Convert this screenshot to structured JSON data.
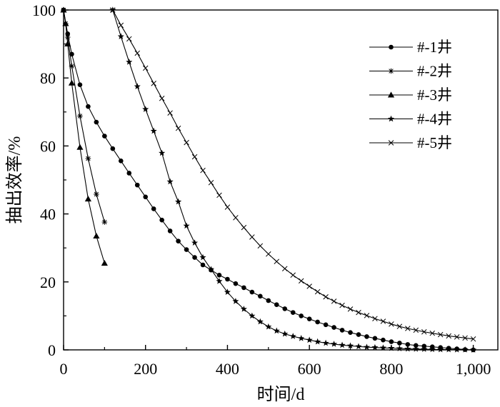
{
  "chart_data": {
    "type": "line",
    "xlabel": "时间/d",
    "ylabel": "抽出效率/%",
    "xlim": [
      0,
      1060
    ],
    "ylim": [
      0,
      100
    ],
    "xticks": [
      0,
      200,
      400,
      600,
      800,
      1000
    ],
    "xtick_labels": [
      "0",
      "200",
      "400",
      "600",
      "800",
      "1,000"
    ],
    "yticks": [
      0,
      20,
      40,
      60,
      80,
      100
    ],
    "ytick_labels": [
      "0",
      "20",
      "40",
      "60",
      "80",
      "100"
    ],
    "grid": false,
    "legend_position": "top-right",
    "series": [
      {
        "name": "#-1井",
        "marker": "dot",
        "x": [
          0,
          10,
          20,
          40,
          60,
          80,
          100,
          120,
          140,
          160,
          180,
          200,
          220,
          240,
          260,
          280,
          300,
          320,
          340,
          360,
          380,
          400,
          420,
          440,
          460,
          480,
          500,
          520,
          540,
          560,
          580,
          600,
          620,
          640,
          660,
          680,
          700,
          720,
          740,
          760,
          780,
          800,
          820,
          840,
          860,
          880,
          900,
          920,
          940,
          960,
          980,
          1000
        ],
        "y": [
          100,
          93,
          87,
          78,
          71.6,
          67,
          62.9,
          59.2,
          55.6,
          52,
          48.5,
          45,
          41.5,
          38.2,
          35,
          32,
          29.5,
          27.2,
          25,
          23.5,
          22,
          20.8,
          19.5,
          18.3,
          17,
          15.8,
          14.5,
          13.3,
          12.1,
          11,
          10,
          9.1,
          8.2,
          7.4,
          6.6,
          5.8,
          5.1,
          4.5,
          3.9,
          3.4,
          2.9,
          2.4,
          2,
          1.6,
          1.3,
          1.1,
          0.9,
          0.7,
          0.5,
          0.3,
          0.1,
          0
        ]
      },
      {
        "name": "#-2井",
        "marker": "asterisk",
        "x": [
          0,
          5,
          10,
          20,
          40,
          60,
          80,
          100
        ],
        "y": [
          100,
          96,
          92,
          83.5,
          68.8,
          56.3,
          45.8,
          37.6
        ]
      },
      {
        "name": "#-3井",
        "marker": "triangle",
        "x": [
          0,
          5,
          10,
          20,
          40,
          60,
          80,
          100
        ],
        "y": [
          100,
          96,
          90,
          78.5,
          59.6,
          44.4,
          33.5,
          25.5
        ]
      },
      {
        "name": "#-4井",
        "marker": "star",
        "x": [
          120,
          140,
          160,
          180,
          200,
          220,
          240,
          260,
          280,
          300,
          320,
          340,
          360,
          380,
          400,
          420,
          440,
          460,
          480,
          500,
          520,
          540,
          560,
          580,
          600,
          620,
          640,
          660,
          680,
          700,
          720,
          740,
          760,
          780,
          800,
          820,
          840,
          860,
          880,
          900,
          920,
          940,
          960,
          980,
          1000
        ],
        "y": [
          100,
          92.2,
          84.7,
          77.5,
          70.8,
          64.4,
          57.9,
          49.5,
          43.6,
          36.5,
          31.5,
          27.2,
          23.7,
          20.2,
          17,
          14.3,
          12,
          10,
          8.3,
          6.8,
          5.6,
          4.7,
          4,
          3.4,
          2.9,
          2.4,
          2,
          1.7,
          1.4,
          1.2,
          1,
          0.8,
          0.7,
          0.6,
          0.5,
          0.4,
          0.3,
          0.25,
          0.2,
          0.15,
          0.1,
          0.1,
          0.05,
          0.05,
          0
        ]
      },
      {
        "name": "#-5井",
        "marker": "x",
        "x": [
          120,
          140,
          160,
          180,
          200,
          220,
          240,
          260,
          280,
          300,
          320,
          340,
          360,
          380,
          400,
          420,
          440,
          460,
          480,
          500,
          520,
          540,
          560,
          580,
          600,
          620,
          640,
          660,
          680,
          700,
          720,
          740,
          760,
          780,
          800,
          820,
          840,
          860,
          880,
          900,
          920,
          940,
          960,
          980,
          1000
        ],
        "y": [
          100,
          95.5,
          91.5,
          87.3,
          82.9,
          78.4,
          74,
          69.7,
          65.2,
          61,
          56.8,
          52.8,
          49.2,
          45.5,
          42,
          38.9,
          36,
          33.2,
          30.6,
          28.2,
          26,
          23.9,
          22,
          20.3,
          18.7,
          17.1,
          15.6,
          14.3,
          13.1,
          12,
          11,
          10.1,
          9.2,
          8.4,
          7.6,
          6.9,
          6.3,
          5.8,
          5.3,
          4.9,
          4.5,
          4.1,
          3.8,
          3.5,
          3.2
        ]
      }
    ]
  }
}
